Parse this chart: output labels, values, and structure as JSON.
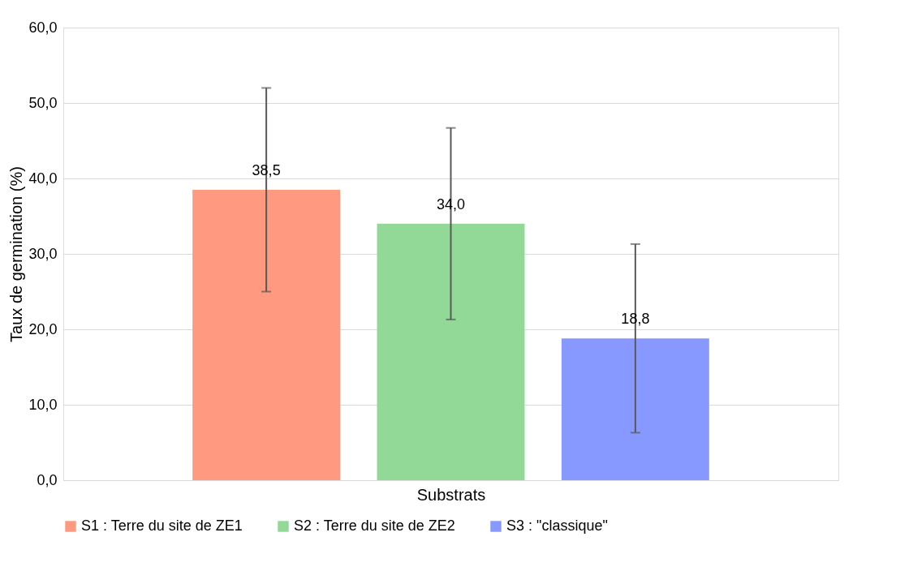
{
  "chart_data": {
    "type": "bar",
    "categories": [
      null
    ],
    "xlabel": "Substrats",
    "ylabel": "Taux de germination (%)",
    "series": [
      {
        "name": "S1 : Terre du site de ZE1",
        "color": "#ff9a80",
        "values": [
          38.5
        ],
        "errors": [
          13.5
        ],
        "value_labels": [
          "38,5"
        ]
      },
      {
        "name": "S2 : Terre du site de ZE2",
        "color": "#92d896",
        "values": [
          34.0
        ],
        "errors": [
          12.7
        ],
        "value_labels": [
          "34,0"
        ]
      },
      {
        "name": "S3 : \"classique\"",
        "color": "#8799ff",
        "values": [
          18.8
        ],
        "errors": [
          12.5
        ],
        "value_labels": [
          "18,8"
        ]
      }
    ],
    "ylim": [
      0,
      60
    ],
    "yticks": [
      {
        "value": 0,
        "label": "0,0"
      },
      {
        "value": 10,
        "label": "10,0"
      },
      {
        "value": 20,
        "label": "20,0"
      },
      {
        "value": 30,
        "label": "30,0"
      },
      {
        "value": 40,
        "label": "40,0"
      },
      {
        "value": 50,
        "label": "50,0"
      },
      {
        "value": 60,
        "label": "60,0"
      }
    ],
    "grid": "y",
    "legend": "bottom"
  }
}
